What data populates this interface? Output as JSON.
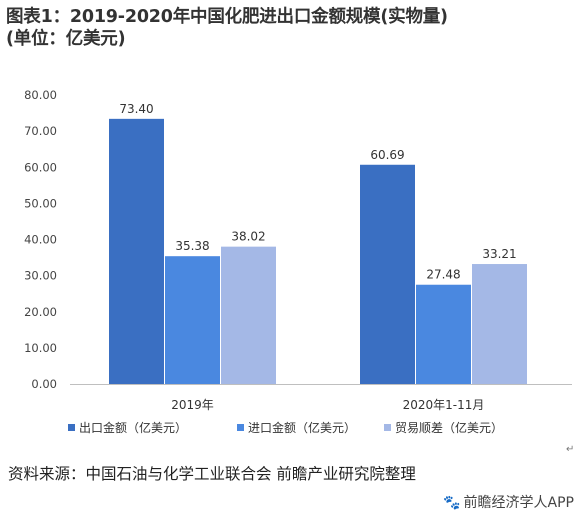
{
  "title": {
    "line1": "图表1：2019-2020年中国化肥进出口金额规模(实物量)",
    "line2": "(单位：亿美元)"
  },
  "chart_data": {
    "type": "bar",
    "categories": [
      "2019年",
      "2020年1-11月"
    ],
    "series": [
      {
        "name": "出口金额（亿美元）",
        "color": "#3a6fc2",
        "values": [
          73.4,
          60.69
        ]
      },
      {
        "name": "进口金额（亿美元）",
        "color": "#4a88e0",
        "values": [
          35.38,
          27.48
        ]
      },
      {
        "name": "贸易顺差（亿美元）",
        "color": "#a4b8e6",
        "values": [
          38.02,
          33.21
        ]
      }
    ],
    "value_labels": [
      [
        "73.40",
        "60.69"
      ],
      [
        "35.38",
        "27.48"
      ],
      [
        "38.02",
        "33.21"
      ]
    ],
    "yticks": [
      "0.00",
      "10.00",
      "20.00",
      "30.00",
      "40.00",
      "50.00",
      "60.00",
      "70.00",
      "80.00"
    ],
    "ylim": [
      0,
      80
    ],
    "grid": false,
    "legend_position": "bottom"
  },
  "source_text": "资料来源：中国石油与化学工业联合会 前瞻产业研究院整理",
  "brand_text": "前瞻经济学人APP",
  "return_mark": "↵",
  "icons": {
    "brand": "paw-icon"
  }
}
